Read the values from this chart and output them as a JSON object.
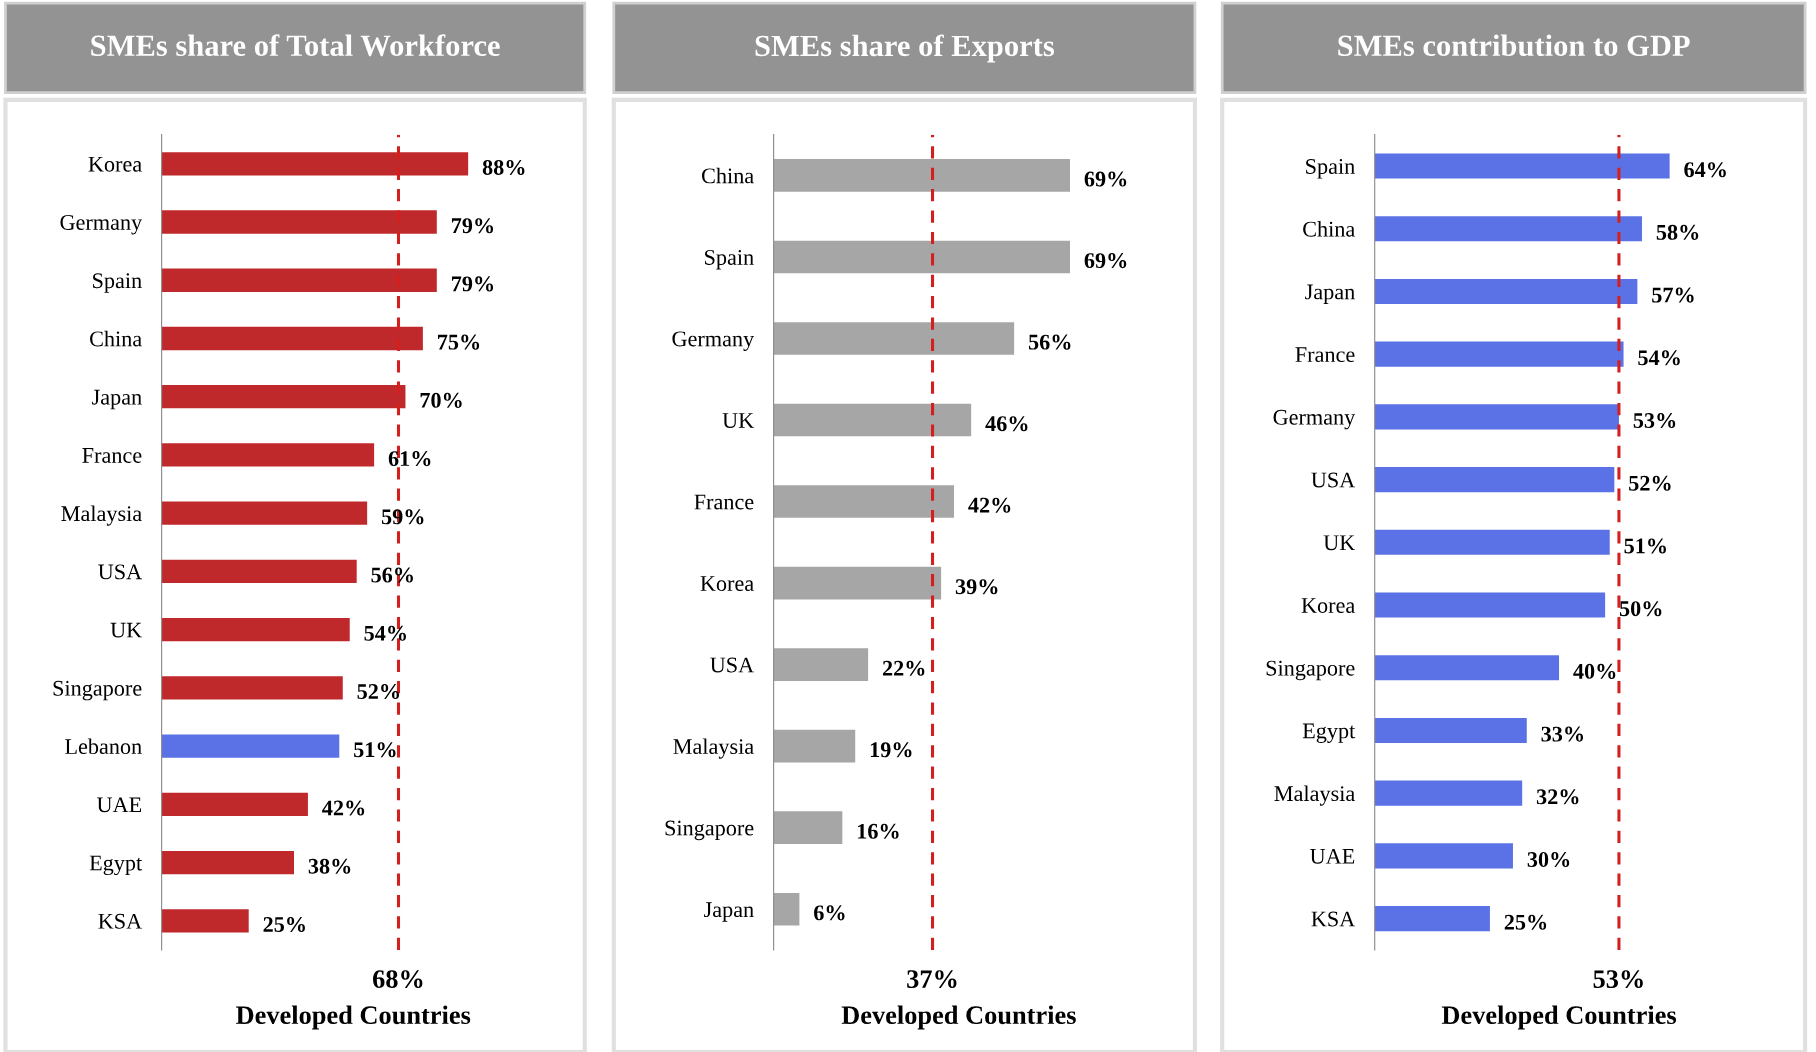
{
  "chart_data": [
    {
      "type": "bar",
      "orientation": "horizontal",
      "title": "SMEs share of Total Workforce",
      "categories": [
        "Korea",
        "Germany",
        "Spain",
        "China",
        "Japan",
        "France",
        "Malaysia",
        "USA",
        "UK",
        "Singapore",
        "Lebanon",
        "UAE",
        "Egypt",
        "KSA"
      ],
      "values": [
        88,
        79,
        79,
        75,
        70,
        61,
        59,
        56,
        54,
        52,
        51,
        42,
        38,
        25
      ],
      "value_labels": [
        "88%",
        "79%",
        "79%",
        "75%",
        "70%",
        "61%",
        "59%",
        "56%",
        "54%",
        "52%",
        "51%",
        "42%",
        "38%",
        "25%"
      ],
      "colors": [
        "#c0292b",
        "#c0292b",
        "#c0292b",
        "#c0292b",
        "#c0292b",
        "#c0292b",
        "#c0292b",
        "#c0292b",
        "#c0292b",
        "#c0292b",
        "#5b72e6",
        "#c0292b",
        "#c0292b",
        "#c0292b"
      ],
      "ref_lines": [
        {
          "axis": "x",
          "value": 68,
          "label": "68%",
          "color": "#d41f1f",
          "line_style": "dashed"
        }
      ],
      "xlabel": "Developed Countries",
      "grid": false,
      "legend": false,
      "tick_labels": "y"
    },
    {
      "type": "bar",
      "orientation": "horizontal",
      "title": "SMEs share of Exports",
      "categories": [
        "China",
        "Spain",
        "Germany",
        "UK",
        "France",
        "Korea",
        "USA",
        "Malaysia",
        "Singapore",
        "Japan"
      ],
      "values": [
        69,
        69,
        56,
        46,
        42,
        39,
        22,
        19,
        16,
        6
      ],
      "value_labels": [
        "69%",
        "69%",
        "56%",
        "46%",
        "42%",
        "39%",
        "22%",
        "19%",
        "16%",
        "6%"
      ],
      "colors": [
        "#a6a6a6",
        "#a6a6a6",
        "#a6a6a6",
        "#a6a6a6",
        "#a6a6a6",
        "#a6a6a6",
        "#a6a6a6",
        "#a6a6a6",
        "#a6a6a6",
        "#a6a6a6"
      ],
      "ref_lines": [
        {
          "axis": "x",
          "value": 37,
          "label": "37%",
          "color": "#d41f1f",
          "line_style": "dashed"
        }
      ],
      "xlabel": "Developed Countries",
      "grid": false,
      "legend": false,
      "tick_labels": "y"
    },
    {
      "type": "bar",
      "orientation": "horizontal",
      "title": "SMEs contribution to GDP",
      "categories": [
        "Spain",
        "China",
        "Japan",
        "France",
        "Germany",
        "USA",
        "UK",
        "Korea",
        "Singapore",
        "Egypt",
        "Malaysia",
        "UAE",
        "KSA"
      ],
      "values": [
        64,
        58,
        57,
        54,
        53,
        52,
        51,
        50,
        40,
        33,
        32,
        30,
        25
      ],
      "value_labels": [
        "64%",
        "58%",
        "57%",
        "54%",
        "53%",
        "52%",
        "51%",
        "50%",
        "40%",
        "33%",
        "32%",
        "30%",
        "25%"
      ],
      "colors": [
        "#5b72e6",
        "#5b72e6",
        "#5b72e6",
        "#5b72e6",
        "#5b72e6",
        "#5b72e6",
        "#5b72e6",
        "#5b72e6",
        "#5b72e6",
        "#5b72e6",
        "#5b72e6",
        "#5b72e6",
        "#5b72e6"
      ],
      "ref_lines": [
        {
          "axis": "x",
          "value": 53,
          "label": "53%",
          "color": "#d41f1f",
          "line_style": "dashed"
        }
      ],
      "xlabel": "Developed Countries",
      "grid": false,
      "legend": false,
      "tick_labels": "y"
    }
  ]
}
